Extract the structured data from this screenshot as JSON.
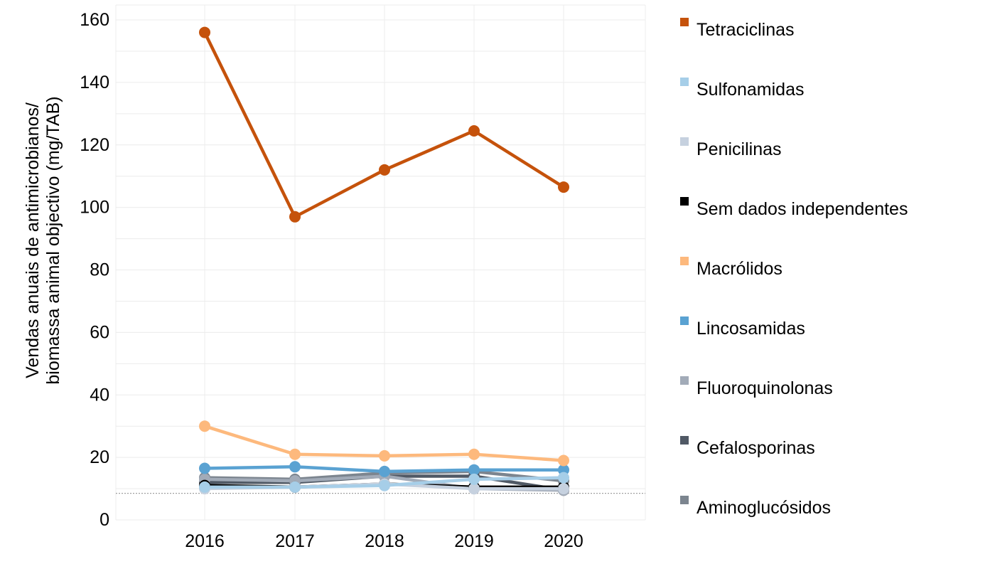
{
  "chart_data": {
    "type": "line",
    "title": "",
    "xlabel": "",
    "ylabel_lines": [
      "Vendas anuais de antimicrobianos/",
      "biomassa animal objectivo (mg/TAB)"
    ],
    "x": [
      "2016",
      "2017",
      "2018",
      "2019",
      "2020"
    ],
    "ylim": [
      0,
      165
    ],
    "yticks": [
      0,
      20,
      40,
      60,
      80,
      100,
      120,
      140,
      160
    ],
    "grid": true,
    "legend_position": "right",
    "reference_line": 8.5,
    "series": [
      {
        "name": "Tetraciclinas",
        "color": "#C5520B",
        "values": [
          156,
          97,
          112,
          124.5,
          106.5
        ]
      },
      {
        "name": "Sulfonamidas",
        "color": "#A6CEE8",
        "values": [
          10.5,
          10.5,
          11,
          13,
          13.5
        ]
      },
      {
        "name": "Penicilinas",
        "color": "#C6D1DF",
        "values": [
          10,
          10.5,
          11.5,
          10,
          10
        ]
      },
      {
        "name": "Sem dados independentes",
        "color": "#000000",
        "values": [
          11,
          10.5,
          11.5,
          10.5,
          10.5
        ]
      },
      {
        "name": "Macrólidos",
        "color": "#FDB97D",
        "values": [
          30,
          21,
          20.5,
          21,
          19
        ]
      },
      {
        "name": "Lincosamidas",
        "color": "#5AA2D2",
        "values": [
          16.5,
          17,
          15.5,
          16,
          16
        ]
      },
      {
        "name": "Fluoroquinolonas",
        "color": "#A2ABB8",
        "values": [
          13,
          12.5,
          14,
          10,
          9.5
        ]
      },
      {
        "name": "Cefalosporinas",
        "color": "#505965",
        "values": [
          12,
          12,
          14,
          14,
          9.5
        ]
      },
      {
        "name": "Aminoglucósidos",
        "color": "#7C858F",
        "values": [
          13.5,
          13,
          15,
          15.5,
          12.5
        ]
      }
    ]
  }
}
